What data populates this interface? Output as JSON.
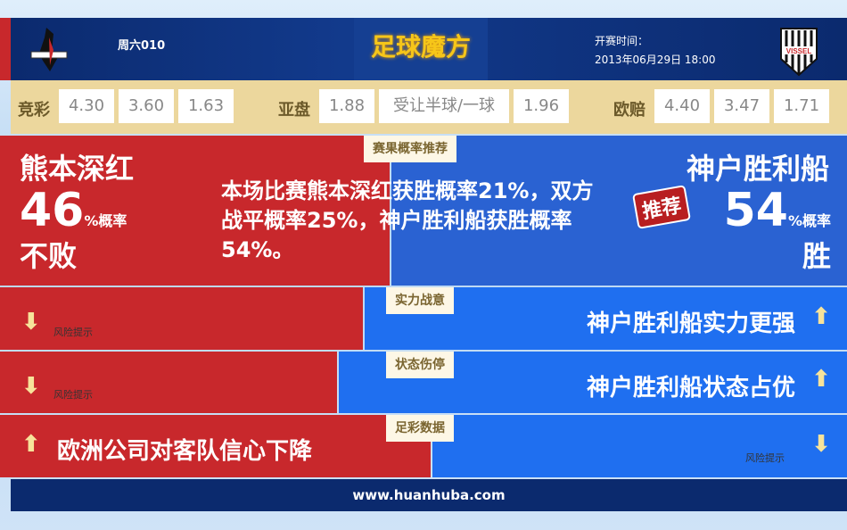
{
  "header": {
    "weekday": "周六010",
    "brand": "足球魔方",
    "kickoff_label": "开赛时间：",
    "kickoff_time": "2013年06月29日 18:00",
    "home_logo": "VISSEL"
  },
  "odds": {
    "jc_label": "竞彩",
    "jc": [
      "4.30",
      "3.60",
      "1.63"
    ],
    "yp_label": "亚盘",
    "yp": [
      "1.88",
      "受让半球/一球",
      "1.96"
    ],
    "op_label": "欧赔",
    "op": [
      "4.40",
      "3.47",
      "1.71"
    ]
  },
  "prob": {
    "tab": "赛果概率推荐",
    "home_team": "熊本深红",
    "home_pct": "46",
    "pct_suffix": "%概率",
    "home_result": "不败",
    "summary": "本场比赛熊本深红获胜概率21%，双方战平概率25%，神户胜利船获胜概率54%。",
    "away_team": "神户胜利船",
    "away_pct": "54",
    "away_result": "胜",
    "badge": "推荐"
  },
  "rows": [
    {
      "tab": "实力战意",
      "left": "风险提示",
      "right": "神户胜利船实力更强"
    },
    {
      "tab": "状态伤停",
      "left": "风险提示",
      "right": "神户胜利船状态占优"
    },
    {
      "tab": "足彩数据",
      "left": "欧洲公司对客队信心下降",
      "right": "风险提示"
    }
  ],
  "colors": {
    "red": "#c8282c",
    "blue": "#2a62d2",
    "navy": "#0b2a6e",
    "gold": "#ecd79d"
  },
  "footer": {
    "url": "www.huanhuba.com"
  }
}
